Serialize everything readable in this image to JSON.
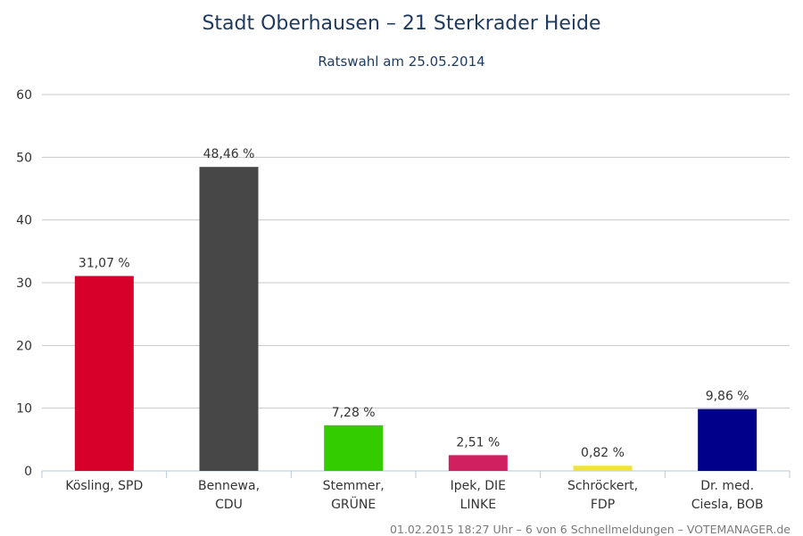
{
  "chart_data": {
    "type": "bar",
    "title": "Stadt Oberhausen – 21 Sterkrader Heide",
    "subtitle": "Ratswahl am 25.05.2014",
    "categories": [
      [
        "Kösling, SPD"
      ],
      [
        "Bennewa,",
        "CDU"
      ],
      [
        "Stemmer,",
        "GRÜNE"
      ],
      [
        "Ipek, DIE",
        "LINKE"
      ],
      [
        "Schröckert,",
        "FDP"
      ],
      [
        "Dr. med.",
        "Ciesla, BOB"
      ]
    ],
    "values": [
      31.07,
      48.46,
      7.28,
      2.51,
      0.82,
      9.86
    ],
    "data_labels": [
      "31,07 %",
      "48,46 %",
      "7,28 %",
      "2,51 %",
      "0,82 %",
      "9,86 %"
    ],
    "colors": [
      "#d7002a",
      "#474747",
      "#33cc00",
      "#d12060",
      "#f2e33a",
      "#00008b"
    ],
    "ylim": [
      0,
      60
    ],
    "yticks": [
      0,
      10,
      20,
      30,
      40,
      50,
      60
    ],
    "grid": true,
    "legend": "none"
  },
  "footer": "01.02.2015 18:27 Uhr – 6 von 6 Schnellmeldungen – VOTEMANAGER.de"
}
